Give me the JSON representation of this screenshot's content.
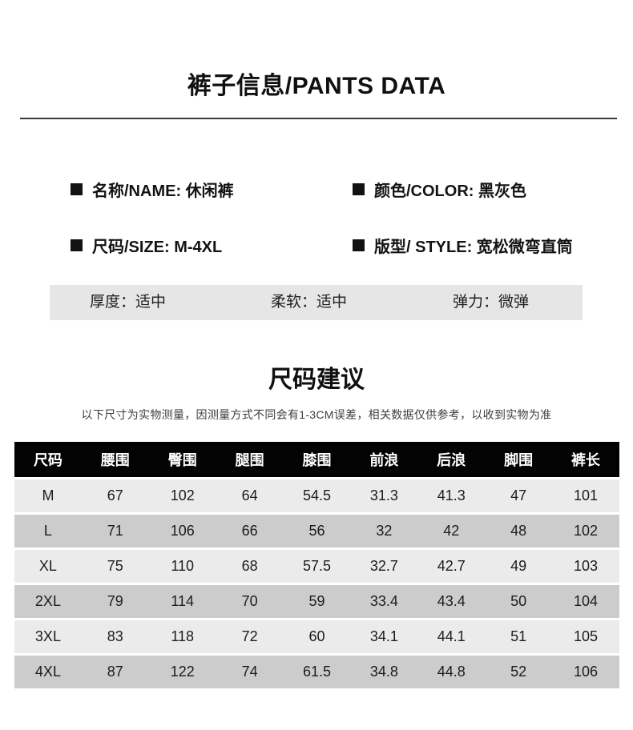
{
  "page": {
    "title": "裤子信息/PANTS DATA"
  },
  "specs": {
    "name": "名称/NAME: 休闲裤",
    "color": "颜色/COLOR: 黑灰色",
    "size": "尺码/SIZE: M-4XL",
    "style": "版型/ STYLE: 宽松微弯直筒"
  },
  "features": {
    "thickness": "厚度：适中",
    "softness": "柔软：适中",
    "elasticity": "弹力：微弹"
  },
  "size_section": {
    "title": "尺码建议",
    "note": "以下尺寸为实物测量，因测量方式不同会有1-3CM误差，相关数据仅供参考，以收到实物为准"
  },
  "size_table": {
    "headers": [
      "尺码",
      "腰围",
      "臀围",
      "腿围",
      "膝围",
      "前浪",
      "后浪",
      "脚围",
      "裤长"
    ],
    "rows": [
      [
        "M",
        "67",
        "102",
        "64",
        "54.5",
        "31.3",
        "41.3",
        "47",
        "101"
      ],
      [
        "L",
        "71",
        "106",
        "66",
        "56",
        "32",
        "42",
        "48",
        "102"
      ],
      [
        "XL",
        "75",
        "110",
        "68",
        "57.5",
        "32.7",
        "42.7",
        "49",
        "103"
      ],
      [
        "2XL",
        "79",
        "114",
        "70",
        "59",
        "33.4",
        "43.4",
        "50",
        "104"
      ],
      [
        "3XL",
        "83",
        "118",
        "72",
        "60",
        "34.1",
        "44.1",
        "51",
        "105"
      ],
      [
        "4XL",
        "87",
        "122",
        "74",
        "61.5",
        "34.8",
        "44.8",
        "52",
        "106"
      ]
    ]
  },
  "colors": {
    "table_header_bg": "#030303",
    "table_row_light": "#ebebeb",
    "table_row_dark": "#cccccc",
    "feature_bar_bg": "#e6e6e6",
    "divider": "#3a3a3a"
  }
}
